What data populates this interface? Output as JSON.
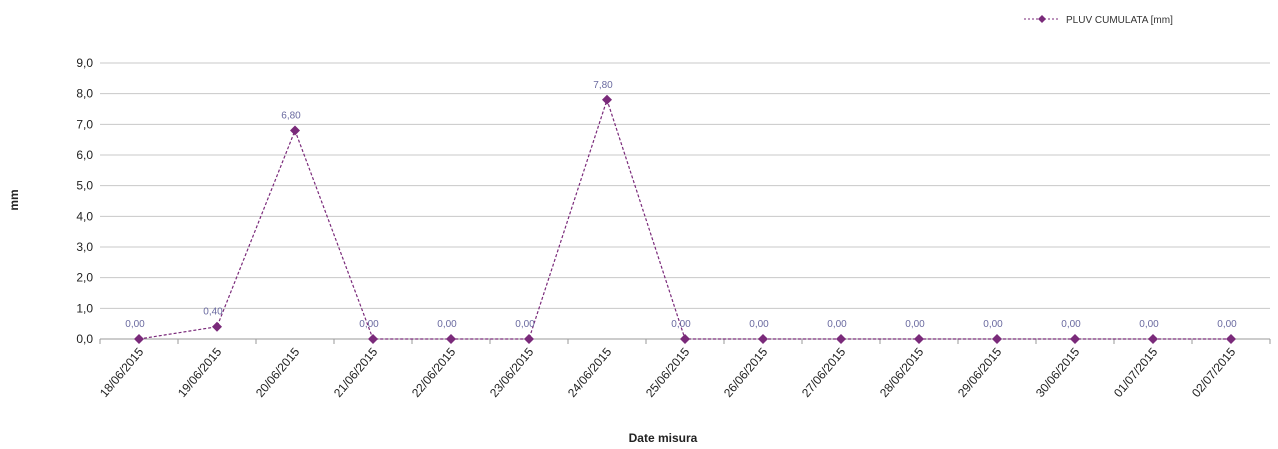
{
  "chart_data": {
    "type": "line",
    "xlabel": "Date misura",
    "ylabel": "mm",
    "ylim": [
      0,
      9
    ],
    "yticks": [
      "0,0",
      "1,0",
      "2,0",
      "3,0",
      "4,0",
      "5,0",
      "6,0",
      "7,0",
      "8,0",
      "9,0"
    ],
    "categories": [
      "18/06/2015",
      "19/06/2015",
      "20/06/2015",
      "21/06/2015",
      "22/06/2015",
      "23/06/2015",
      "24/06/2015",
      "25/06/2015",
      "26/06/2015",
      "27/06/2015",
      "28/06/2015",
      "29/06/2015",
      "30/06/2015",
      "01/07/2015",
      "02/07/2015"
    ],
    "series": [
      {
        "name": "PLUV CUMULATA [mm]",
        "color": "#7a2a7a",
        "values": [
          0,
          0.4,
          6.8,
          0,
          0,
          0,
          7.8,
          0,
          0,
          0,
          0,
          0,
          0,
          0,
          0
        ],
        "labels": [
          "0,00",
          "0,40",
          "6,80",
          "0,00",
          "0,00",
          "0,00",
          "7,80",
          "0,00",
          "0,00",
          "0,00",
          "0,00",
          "0,00",
          "0,00",
          "0,00",
          "0,00"
        ]
      }
    ],
    "grid": true,
    "legend": "top-right"
  }
}
